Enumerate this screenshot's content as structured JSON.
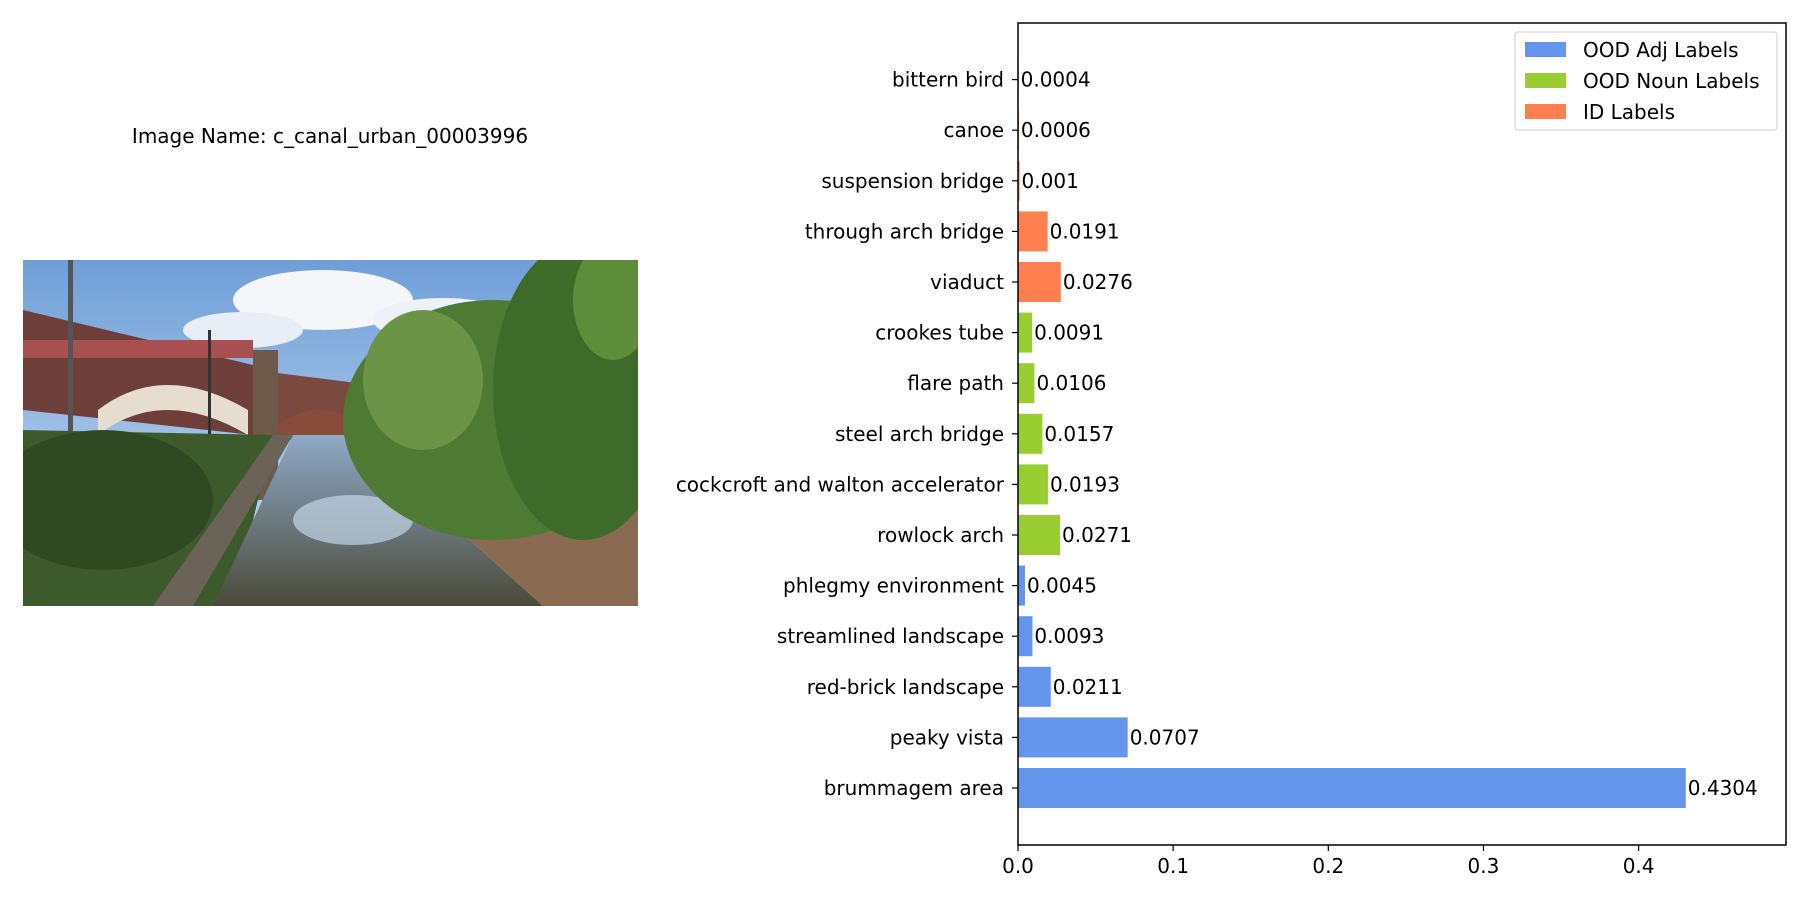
{
  "image_label": "Image Name: c_canal_urban_00003996",
  "chart_data": {
    "type": "bar",
    "orientation": "horizontal",
    "title": "",
    "xlabel": "",
    "ylabel": "",
    "xlim": [
      0,
      0.495
    ],
    "xticks": [
      "0.0",
      "0.1",
      "0.2",
      "0.3",
      "0.4"
    ],
    "grid": false,
    "legend_position": "top-right",
    "legend": [
      {
        "label": "OOD Adj Labels",
        "color": "#6495ED"
      },
      {
        "label": "OOD Noun Labels",
        "color": "#9ACD32"
      },
      {
        "label": "ID Labels",
        "color": "#FF7F50"
      }
    ],
    "bars": [
      {
        "category": "brummagem area",
        "value": 0.4304,
        "label": "0.4304",
        "group": 0
      },
      {
        "category": "peaky vista",
        "value": 0.0707,
        "label": "0.0707",
        "group": 0
      },
      {
        "category": "red-brick landscape",
        "value": 0.0211,
        "label": "0.0211",
        "group": 0
      },
      {
        "category": "streamlined landscape",
        "value": 0.0093,
        "label": "0.0093",
        "group": 0
      },
      {
        "category": "phlegmy environment",
        "value": 0.0045,
        "label": "0.0045",
        "group": 0
      },
      {
        "category": "rowlock arch",
        "value": 0.0271,
        "label": "0.0271",
        "group": 1
      },
      {
        "category": "cockcroft and walton accelerator",
        "value": 0.0193,
        "label": "0.0193",
        "group": 1
      },
      {
        "category": "steel arch bridge",
        "value": 0.0157,
        "label": "0.0157",
        "group": 1
      },
      {
        "category": "flare path",
        "value": 0.0106,
        "label": "0.0106",
        "group": 1
      },
      {
        "category": "crookes tube",
        "value": 0.0091,
        "label": "0.0091",
        "group": 1
      },
      {
        "category": "viaduct",
        "value": 0.0276,
        "label": "0.0276",
        "group": 2
      },
      {
        "category": "through arch bridge",
        "value": 0.0191,
        "label": "0.0191",
        "group": 2
      },
      {
        "category": "suspension bridge",
        "value": 0.001,
        "label": "0.001",
        "group": 2
      },
      {
        "category": "canoe",
        "value": 0.0006,
        "label": "0.0006",
        "group": 2
      },
      {
        "category": "bittern bird",
        "value": 0.0004,
        "label": "0.0004",
        "group": 2
      }
    ]
  }
}
